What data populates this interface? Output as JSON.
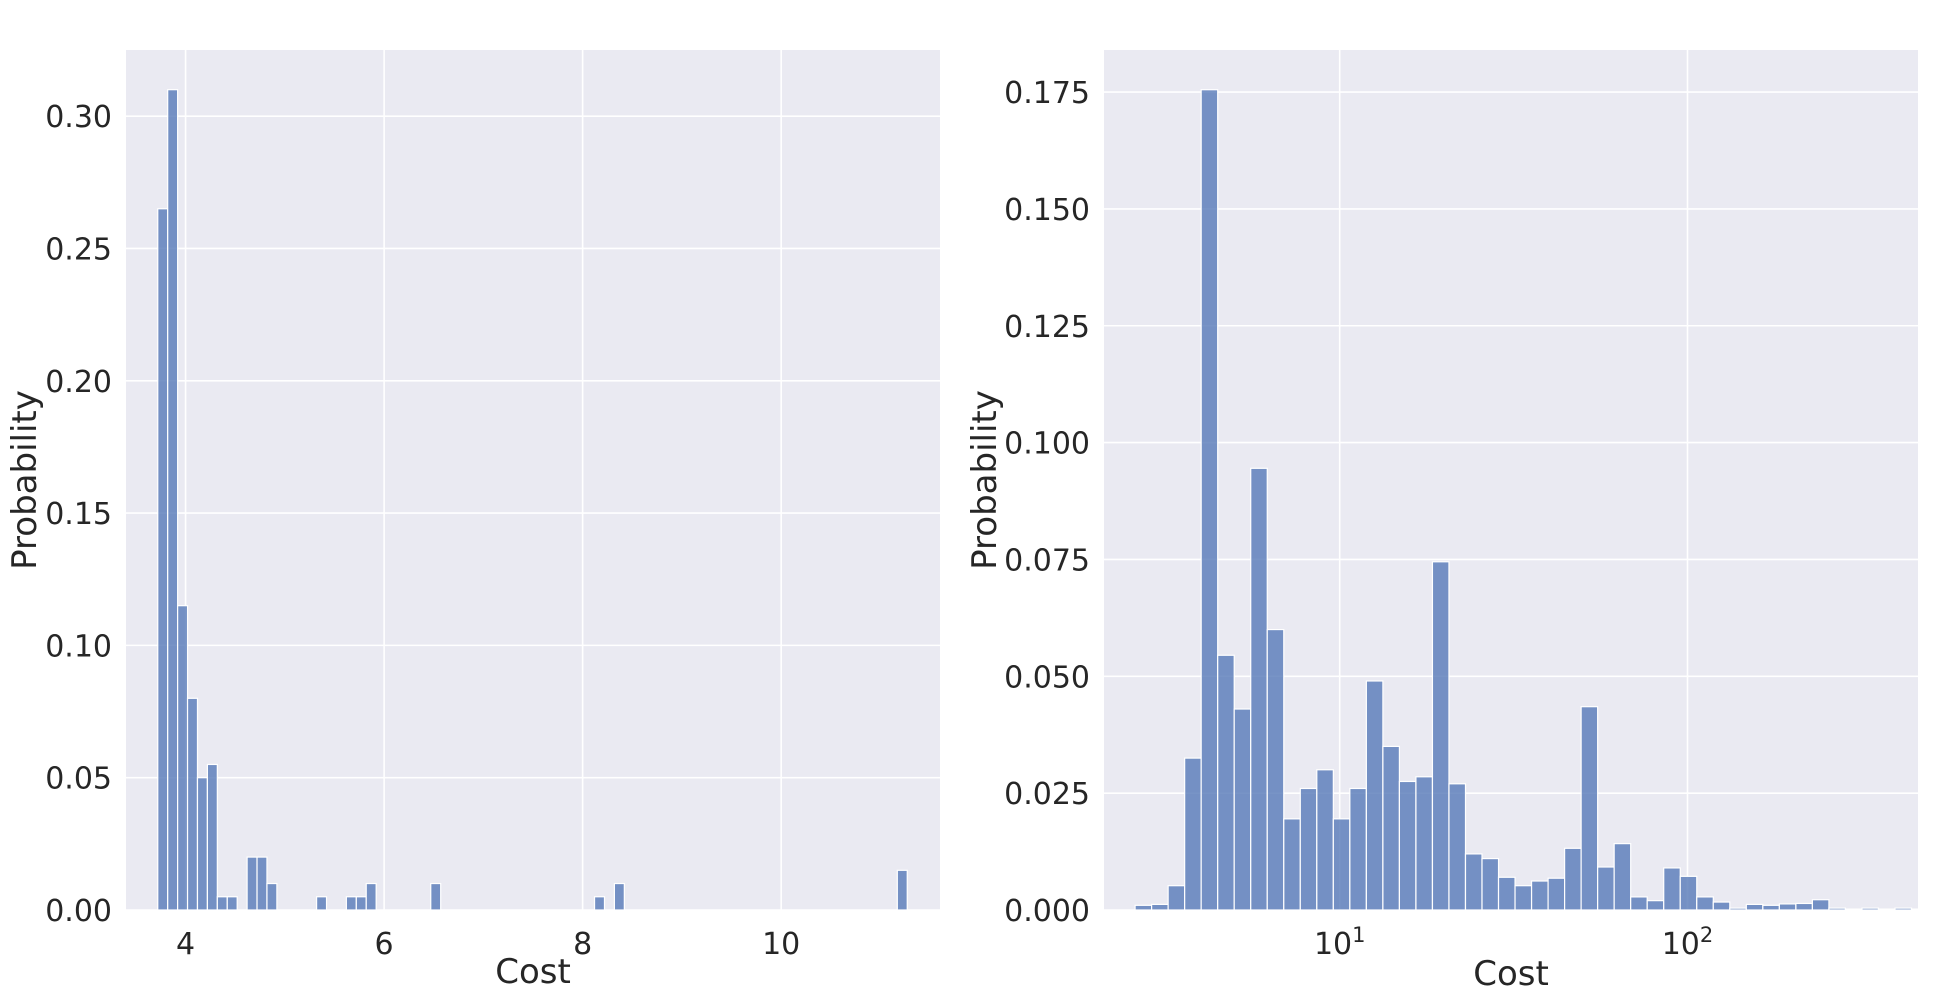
{
  "chart_data": [
    {
      "type": "bar",
      "xlabel": "Cost",
      "ylabel": "Probability",
      "xscale": "linear",
      "xlim": [
        3.4,
        11.6
      ],
      "ylim": [
        0,
        0.325
      ],
      "xticks": [
        4,
        6,
        8,
        10
      ],
      "xtick_labels": [
        "4",
        "6",
        "8",
        "10"
      ],
      "yticks": [
        0.0,
        0.05,
        0.1,
        0.15,
        0.2,
        0.25,
        0.3
      ],
      "ytick_labels": [
        "0.00",
        "0.05",
        "0.10",
        "0.15",
        "0.20",
        "0.25",
        "0.30"
      ],
      "grid": true,
      "bar_color": "#5a7dba",
      "background": "#eaeaf2",
      "bins": [
        {
          "x0": 3.72,
          "x1": 3.82,
          "y": 0.265
        },
        {
          "x0": 3.82,
          "x1": 3.92,
          "y": 0.31
        },
        {
          "x0": 3.92,
          "x1": 4.02,
          "y": 0.115
        },
        {
          "x0": 4.02,
          "x1": 4.12,
          "y": 0.08
        },
        {
          "x0": 4.12,
          "x1": 4.22,
          "y": 0.05
        },
        {
          "x0": 4.22,
          "x1": 4.32,
          "y": 0.055
        },
        {
          "x0": 4.32,
          "x1": 4.42,
          "y": 0.005
        },
        {
          "x0": 4.42,
          "x1": 4.52,
          "y": 0.005
        },
        {
          "x0": 4.62,
          "x1": 4.72,
          "y": 0.02
        },
        {
          "x0": 4.72,
          "x1": 4.82,
          "y": 0.02
        },
        {
          "x0": 4.82,
          "x1": 4.92,
          "y": 0.01
        },
        {
          "x0": 5.32,
          "x1": 5.42,
          "y": 0.005
        },
        {
          "x0": 5.62,
          "x1": 5.72,
          "y": 0.005
        },
        {
          "x0": 5.72,
          "x1": 5.82,
          "y": 0.005
        },
        {
          "x0": 5.82,
          "x1": 5.92,
          "y": 0.01
        },
        {
          "x0": 6.47,
          "x1": 6.57,
          "y": 0.01
        },
        {
          "x0": 8.12,
          "x1": 8.22,
          "y": 0.005
        },
        {
          "x0": 8.32,
          "x1": 8.42,
          "y": 0.01
        },
        {
          "x0": 11.17,
          "x1": 11.27,
          "y": 0.015
        }
      ]
    },
    {
      "type": "bar",
      "xlabel": "Cost",
      "ylabel": "Probability",
      "xscale": "log",
      "xlim": [
        2.1,
        460
      ],
      "ylim": [
        0,
        0.184
      ],
      "xticks": [
        10,
        100
      ],
      "xtick_labels": [
        {
          "base": "10",
          "exp": "1"
        },
        {
          "base": "10",
          "exp": "2"
        }
      ],
      "yticks": [
        0.0,
        0.025,
        0.05,
        0.075,
        0.1,
        0.125,
        0.15,
        0.175
      ],
      "ytick_labels": [
        "0.000",
        "0.025",
        "0.050",
        "0.075",
        "0.100",
        "0.125",
        "0.150",
        "0.175"
      ],
      "grid": true,
      "bar_color": "#5a7dba",
      "background": "#eaeaf2",
      "log_bin_start": 2.58,
      "log_bin_width": 0.0475,
      "values": [
        0.001,
        0.0012,
        0.0052,
        0.0325,
        0.1755,
        0.0545,
        0.043,
        0.0945,
        0.06,
        0.0195,
        0.026,
        0.03,
        0.0195,
        0.026,
        0.049,
        0.035,
        0.0275,
        0.0285,
        0.0745,
        0.027,
        0.012,
        0.011,
        0.007,
        0.0052,
        0.0062,
        0.0068,
        0.0132,
        0.0435,
        0.0092,
        0.0142,
        0.0028,
        0.002,
        0.009,
        0.0072,
        0.0028,
        0.0017,
        0.0004,
        0.0012,
        0.001,
        0.0013,
        0.0014,
        0.0022,
        0.0004,
        0.0002,
        0.0004,
        0.0002,
        0.0004,
        0.0002,
        0.0002,
        0.001
      ]
    }
  ]
}
